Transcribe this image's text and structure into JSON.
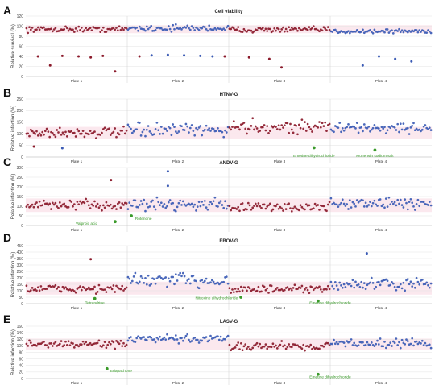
{
  "colors": {
    "red": "#8b1a2b",
    "blue": "#3b5bb5",
    "green": "#3a9a2a",
    "grid": "#e3e3e3",
    "band": "#f7d5e0"
  },
  "plate_labels": [
    "Plate 1",
    "Plate 2",
    "Plate 3",
    "Plate 4"
  ],
  "chart_data": [
    {
      "type": "scatter",
      "letter": "A",
      "title": "Cell viability",
      "ylabel": "Relative survival (%)",
      "ylim": [
        0,
        120
      ],
      "yticks": [
        0,
        20,
        40,
        60,
        80,
        100,
        120
      ],
      "grid": true,
      "plate_means": [
        94,
        96,
        93,
        90
      ],
      "plate_spread": [
        5,
        6,
        5,
        4
      ],
      "band": [
        86,
        102
      ],
      "outliers": [
        {
          "x": 0.03,
          "y": 40,
          "c": "red"
        },
        {
          "x": 0.06,
          "y": 22,
          "c": "red"
        },
        {
          "x": 0.09,
          "y": 41,
          "c": "red"
        },
        {
          "x": 0.13,
          "y": 40,
          "c": "red"
        },
        {
          "x": 0.16,
          "y": 38,
          "c": "red"
        },
        {
          "x": 0.19,
          "y": 41,
          "c": "red"
        },
        {
          "x": 0.22,
          "y": 10,
          "c": "red"
        },
        {
          "x": 0.28,
          "y": 40,
          "c": "red"
        },
        {
          "x": 0.31,
          "y": 42,
          "c": "blue"
        },
        {
          "x": 0.35,
          "y": 43,
          "c": "blue"
        },
        {
          "x": 0.39,
          "y": 42,
          "c": "blue"
        },
        {
          "x": 0.43,
          "y": 41,
          "c": "blue"
        },
        {
          "x": 0.46,
          "y": 40,
          "c": "blue"
        },
        {
          "x": 0.49,
          "y": 40,
          "c": "red"
        },
        {
          "x": 0.55,
          "y": 38,
          "c": "red"
        },
        {
          "x": 0.6,
          "y": 35,
          "c": "red"
        },
        {
          "x": 0.63,
          "y": 18,
          "c": "red"
        },
        {
          "x": 0.83,
          "y": 22,
          "c": "blue"
        },
        {
          "x": 0.87,
          "y": 40,
          "c": "blue"
        },
        {
          "x": 0.91,
          "y": 35,
          "c": "blue"
        },
        {
          "x": 0.95,
          "y": 30,
          "c": "blue"
        }
      ],
      "annotations": []
    },
    {
      "type": "scatter",
      "letter": "B",
      "title": "HTNV-G",
      "ylabel": "Relative infection (%)",
      "ylim": [
        0,
        250
      ],
      "yticks": [
        0,
        50,
        100,
        150,
        200,
        250
      ],
      "grid": true,
      "plate_means": [
        105,
        115,
        130,
        125
      ],
      "plate_spread": [
        22,
        25,
        28,
        20
      ],
      "band": [
        80,
        130
      ],
      "outliers": [
        {
          "x": 0.02,
          "y": 45,
          "c": "red"
        },
        {
          "x": 0.09,
          "y": 38,
          "c": "blue"
        },
        {
          "x": 0.71,
          "y": 40,
          "c": "green"
        },
        {
          "x": 0.86,
          "y": 30,
          "c": "green"
        }
      ],
      "annotations": [
        {
          "x": 0.71,
          "y": 40,
          "text": "Emetine dihydrochloride",
          "tx": 0.71,
          "ty": 5
        },
        {
          "x": 0.86,
          "y": 30,
          "text": "Monensin sodium salt",
          "tx": 0.86,
          "ty": 5
        }
      ]
    },
    {
      "type": "scatter",
      "letter": "C",
      "title": "ANDV-G",
      "ylabel": "Relative infection (%)",
      "ylim": [
        0,
        300
      ],
      "yticks": [
        0,
        50,
        100,
        150,
        200,
        250,
        300
      ],
      "grid": true,
      "plate_means": [
        105,
        110,
        95,
        115
      ],
      "plate_spread": [
        25,
        28,
        22,
        30
      ],
      "band": [
        70,
        140
      ],
      "outliers": [
        {
          "x": 0.21,
          "y": 235,
          "c": "red"
        },
        {
          "x": 0.35,
          "y": 280,
          "c": "blue"
        },
        {
          "x": 0.35,
          "y": 205,
          "c": "blue"
        },
        {
          "x": 0.22,
          "y": 20,
          "c": "green"
        },
        {
          "x": 0.26,
          "y": 50,
          "c": "green"
        }
      ],
      "annotations": [
        {
          "x": 0.22,
          "y": 20,
          "text": "Valproic acid",
          "tx": 0.15,
          "ty": 10
        },
        {
          "x": 0.26,
          "y": 50,
          "text": "Rotenone",
          "tx": 0.29,
          "ty": 35
        }
      ]
    },
    {
      "type": "scatter",
      "letter": "D",
      "title": "EBOV-G",
      "ylabel": "Relative infection (%)",
      "ylim": [
        0,
        450
      ],
      "yticks": [
        0,
        50,
        100,
        150,
        200,
        250,
        300,
        350,
        400,
        450
      ],
      "grid": true,
      "plate_means": [
        115,
        180,
        110,
        150
      ],
      "plate_spread": [
        30,
        55,
        28,
        40
      ],
      "band": [
        70,
        170
      ],
      "outliers": [
        {
          "x": 0.16,
          "y": 345,
          "c": "red"
        },
        {
          "x": 0.84,
          "y": 390,
          "c": "blue"
        },
        {
          "x": 0.17,
          "y": 40,
          "c": "green"
        },
        {
          "x": 0.53,
          "y": 50,
          "c": "green"
        },
        {
          "x": 0.72,
          "y": 20,
          "c": "green"
        }
      ],
      "annotations": [
        {
          "x": 0.17,
          "y": 40,
          "text": "Tetrandrine",
          "tx": 0.17,
          "ty": 5
        },
        {
          "x": 0.53,
          "y": 50,
          "text": "Nitroxine dihydrochloride",
          "tx": 0.47,
          "ty": 45
        },
        {
          "x": 0.72,
          "y": 20,
          "text": "Emetine dihydrochloride",
          "tx": 0.75,
          "ty": 5
        }
      ]
    },
    {
      "type": "scatter",
      "letter": "E",
      "title": "LASV-G",
      "ylabel": "Relative infection (%)",
      "ylim": [
        0,
        160
      ],
      "yticks": [
        0,
        20,
        40,
        60,
        80,
        100,
        120,
        140,
        160
      ],
      "grid": true,
      "plate_means": [
        105,
        120,
        100,
        108
      ],
      "plate_spread": [
        10,
        12,
        12,
        12
      ],
      "band": [
        88,
        122
      ],
      "outliers": [
        {
          "x": 0.2,
          "y": 30,
          "c": "green"
        },
        {
          "x": 0.72,
          "y": 13,
          "c": "green"
        }
      ],
      "annotations": [
        {
          "x": 0.2,
          "y": 30,
          "text": "Eriapachone",
          "tx": 0.235,
          "ty": 24
        },
        {
          "x": 0.72,
          "y": 13,
          "text": "Emetine dihydrochloride",
          "tx": 0.75,
          "ty": 5
        }
      ]
    }
  ]
}
